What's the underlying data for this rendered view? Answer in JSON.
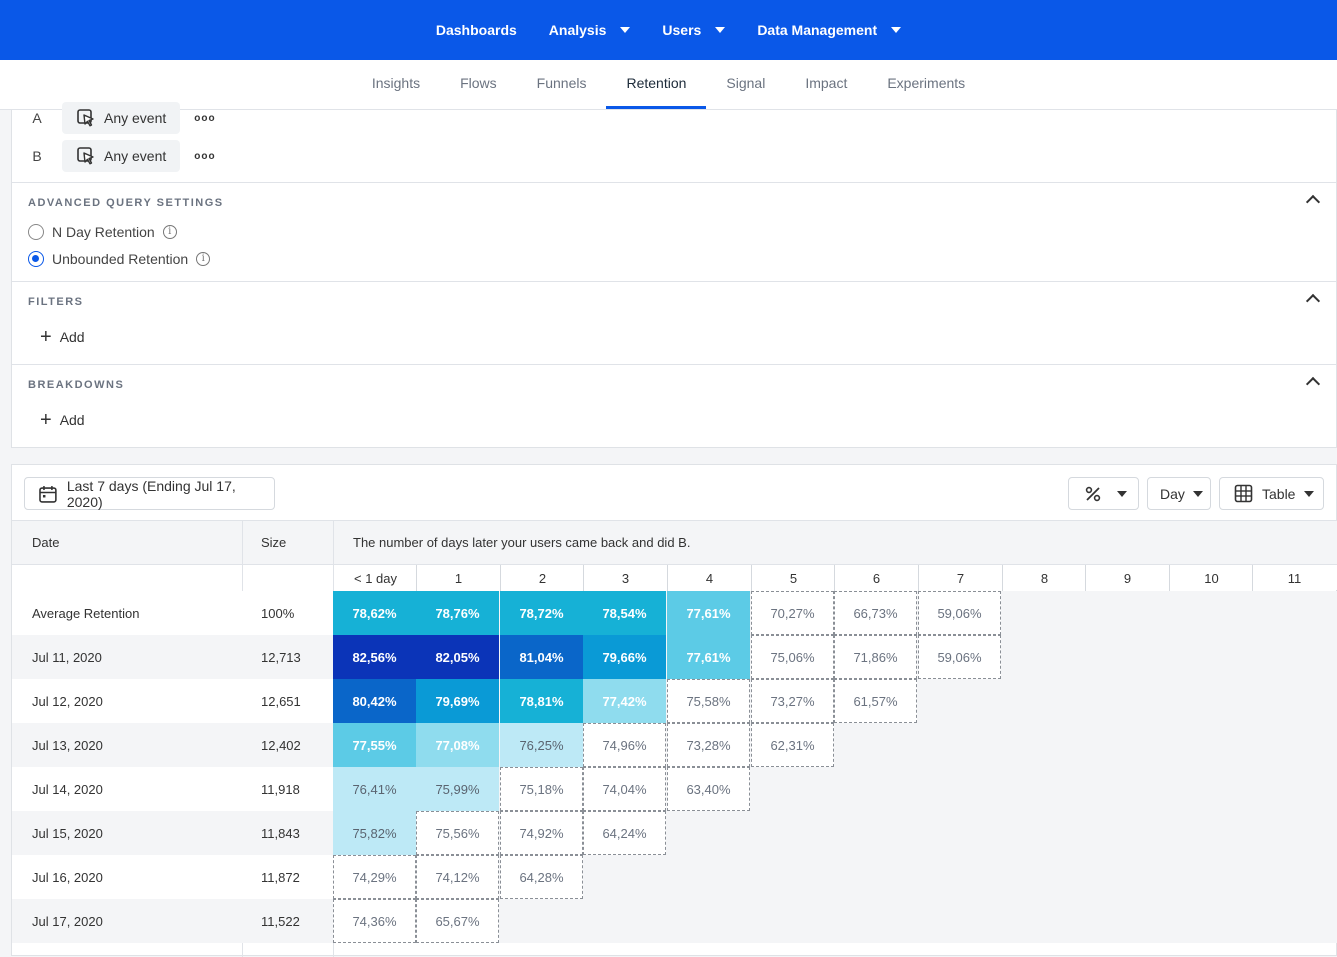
{
  "topnav": [
    {
      "label": "Dashboards",
      "dropdown": false
    },
    {
      "label": "Analysis",
      "dropdown": true
    },
    {
      "label": "Users",
      "dropdown": true
    },
    {
      "label": "Data Management",
      "dropdown": true
    }
  ],
  "subnav": {
    "tabs": [
      "Insights",
      "Flows",
      "Funnels",
      "Retention",
      "Signal",
      "Impact",
      "Experiments"
    ],
    "active": "Retention"
  },
  "events": [
    {
      "letter": "A",
      "label": "Any event"
    },
    {
      "letter": "B",
      "label": "Any event"
    }
  ],
  "advanced": {
    "title": "ADVANCED QUERY SETTINGS",
    "options": [
      {
        "label": "N Day Retention",
        "selected": false
      },
      {
        "label": "Unbounded Retention",
        "selected": true
      }
    ]
  },
  "filters": {
    "title": "FILTERS",
    "add_label": "Add"
  },
  "breakdowns": {
    "title": "BREAKDOWNS",
    "add_label": "Add"
  },
  "toolbar": {
    "date_range": "Last 7 days (Ending Jul 17, 2020)",
    "interval": "Day",
    "view": "Table"
  },
  "table": {
    "col_date": "Date",
    "col_size": "Size",
    "caption": "The number of days later your users came back and did B.",
    "day_headers": [
      "< 1 day",
      "1",
      "2",
      "3",
      "4",
      "5",
      "6",
      "7",
      "8",
      "9",
      "10",
      "11"
    ],
    "colors": {
      "darkest": "#0b34b8",
      "dark": "#0a66c9",
      "mid": "#0a9ad6",
      "cyan": "#16b1d6",
      "light": "#5ccbe6",
      "lighter": "#8fdcee",
      "palest": "#bde9f6"
    },
    "rows": [
      {
        "date": "Average Retention",
        "size": "100%",
        "cells": [
          {
            "v": "78,62%",
            "c": "cyan"
          },
          {
            "v": "78,76%",
            "c": "cyan"
          },
          {
            "v": "78,72%",
            "c": "cyan"
          },
          {
            "v": "78,54%",
            "c": "cyan"
          },
          {
            "v": "77,61%",
            "c": "light"
          },
          {
            "v": "70,27%",
            "c": "none"
          },
          {
            "v": "66,73%",
            "c": "none"
          },
          {
            "v": "59,06%",
            "c": "none"
          }
        ]
      },
      {
        "date": "Jul 11, 2020",
        "size": "12,713",
        "cells": [
          {
            "v": "82,56%",
            "c": "darkest"
          },
          {
            "v": "82,05%",
            "c": "darkest"
          },
          {
            "v": "81,04%",
            "c": "dark"
          },
          {
            "v": "79,66%",
            "c": "mid"
          },
          {
            "v": "77,61%",
            "c": "light"
          },
          {
            "v": "75,06%",
            "c": "none"
          },
          {
            "v": "71,86%",
            "c": "none"
          },
          {
            "v": "59,06%",
            "c": "none"
          }
        ]
      },
      {
        "date": "Jul 12, 2020",
        "size": "12,651",
        "cells": [
          {
            "v": "80,42%",
            "c": "dark"
          },
          {
            "v": "79,69%",
            "c": "mid"
          },
          {
            "v": "78,81%",
            "c": "cyan"
          },
          {
            "v": "77,42%",
            "c": "lighter"
          },
          {
            "v": "75,58%",
            "c": "none"
          },
          {
            "v": "73,27%",
            "c": "none"
          },
          {
            "v": "61,57%",
            "c": "none"
          }
        ]
      },
      {
        "date": "Jul 13, 2020",
        "size": "12,402",
        "cells": [
          {
            "v": "77,55%",
            "c": "light"
          },
          {
            "v": "77,08%",
            "c": "lighter"
          },
          {
            "v": "76,25%",
            "c": "palest"
          },
          {
            "v": "74,96%",
            "c": "none"
          },
          {
            "v": "73,28%",
            "c": "none"
          },
          {
            "v": "62,31%",
            "c": "none"
          }
        ]
      },
      {
        "date": "Jul 14, 2020",
        "size": "11,918",
        "cells": [
          {
            "v": "76,41%",
            "c": "palest"
          },
          {
            "v": "75,99%",
            "c": "palest"
          },
          {
            "v": "75,18%",
            "c": "none"
          },
          {
            "v": "74,04%",
            "c": "none"
          },
          {
            "v": "63,40%",
            "c": "none"
          }
        ]
      },
      {
        "date": "Jul 15, 2020",
        "size": "11,843",
        "cells": [
          {
            "v": "75,82%",
            "c": "palest"
          },
          {
            "v": "75,56%",
            "c": "none"
          },
          {
            "v": "74,92%",
            "c": "none"
          },
          {
            "v": "64,24%",
            "c": "none"
          }
        ]
      },
      {
        "date": "Jul 16, 2020",
        "size": "11,872",
        "cells": [
          {
            "v": "74,29%",
            "c": "none"
          },
          {
            "v": "74,12%",
            "c": "none"
          },
          {
            "v": "64,28%",
            "c": "none"
          }
        ]
      },
      {
        "date": "Jul 17, 2020",
        "size": "11,522",
        "cells": [
          {
            "v": "74,36%",
            "c": "none"
          },
          {
            "v": "65,67%",
            "c": "none"
          }
        ]
      }
    ]
  }
}
